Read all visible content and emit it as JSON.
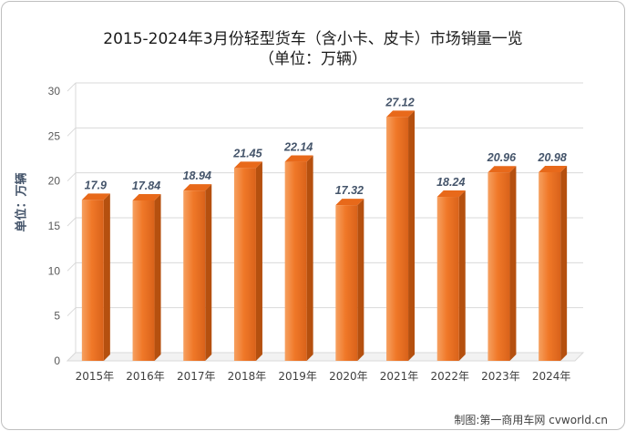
{
  "chart_data": {
    "type": "bar",
    "title": "2015-2024年3月份轻型货车（含小卡、皮卡）市场销量一览",
    "subtitle": "（单位：万辆）",
    "xlabel": "",
    "ylabel": "单位：万辆",
    "categories": [
      "2015年",
      "2016年",
      "2017年",
      "2018年",
      "2019年",
      "2020年",
      "2021年",
      "2022年",
      "2023年",
      "2024年"
    ],
    "values": [
      17.9,
      17.84,
      18.94,
      21.45,
      22.14,
      17.32,
      27.12,
      18.24,
      20.96,
      20.98
    ],
    "value_labels": [
      "17.9",
      "17.84",
      "18.94",
      "21.45",
      "22.14",
      "17.32",
      "27.12",
      "18.24",
      "20.96",
      "20.98"
    ],
    "ylim": [
      0,
      30
    ],
    "yticks": [
      "0",
      "5",
      "10",
      "15",
      "20",
      "25",
      "30"
    ],
    "grid": true,
    "legend": "none",
    "bar_color": "#f07828",
    "label_color": "#44546a"
  },
  "credit": "制图:第一商用车网 cvworld.cn"
}
